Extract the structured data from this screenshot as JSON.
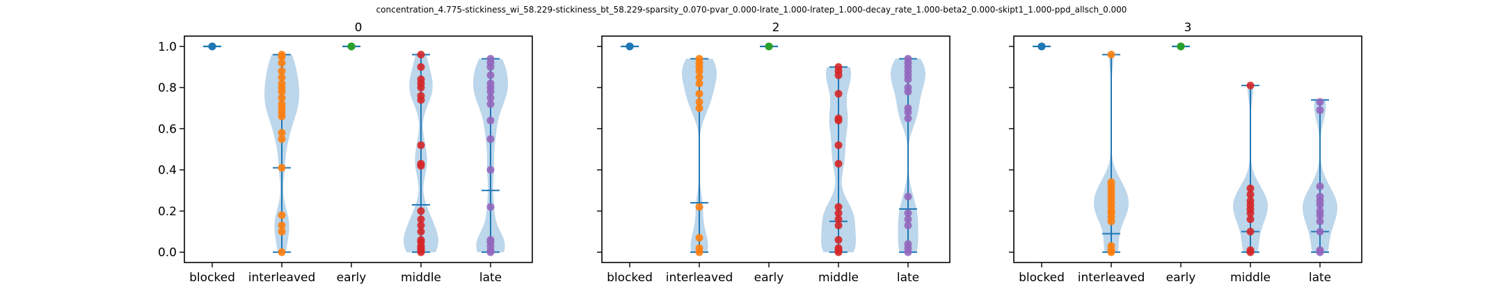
{
  "figure": {
    "suptitle": "concentration_4.775-stickiness_wi_58.229-stickiness_bt_58.229-sparsity_0.070-pvar_0.000-lrate_1.000-lratep_1.000-decay_rate_1.000-beta2_0.000-skipt1_1.000-ppd_allsch_0.000"
  },
  "colors": {
    "violin_fill": "#a6c8e4",
    "violin_lines": "#1f77b4",
    "blocked": "#1f77b4",
    "interleaved": "#ff7f0e",
    "early": "#2ca02c",
    "middle": "#d62728",
    "late": "#9467bd"
  },
  "chart_data": [
    {
      "type": "violin",
      "title": "0",
      "categories": [
        "blocked",
        "interleaved",
        "early",
        "middle",
        "late"
      ],
      "ylim": [
        -0.05,
        1.05
      ],
      "yticks": [
        "0.0",
        "0.2",
        "0.4",
        "0.6",
        "0.8",
        "1.0"
      ],
      "show_ytick_labels": true,
      "series": [
        {
          "category": "blocked",
          "values": [
            1.0,
            1.0,
            1.0
          ],
          "min": 1.0,
          "mean": 1.0,
          "max": 1.0
        },
        {
          "category": "interleaved",
          "values": [
            0.0,
            0.1,
            0.13,
            0.18,
            0.41,
            0.55,
            0.58,
            0.66,
            0.68,
            0.7,
            0.72,
            0.75,
            0.78,
            0.8,
            0.82,
            0.85,
            0.88,
            0.92,
            0.95,
            0.96
          ],
          "min": 0.0,
          "mean": 0.41,
          "max": 0.96
        },
        {
          "category": "early",
          "values": [
            1.0,
            1.0,
            1.0
          ],
          "min": 1.0,
          "mean": 1.0,
          "max": 1.0
        },
        {
          "category": "middle",
          "values": [
            0.0,
            0.01,
            0.02,
            0.03,
            0.05,
            0.06,
            0.1,
            0.13,
            0.16,
            0.2,
            0.42,
            0.43,
            0.52,
            0.74,
            0.76,
            0.8,
            0.82,
            0.84,
            0.9,
            0.96
          ],
          "min": 0.0,
          "mean": 0.23,
          "max": 0.96
        },
        {
          "category": "late",
          "values": [
            0.0,
            0.01,
            0.03,
            0.05,
            0.06,
            0.22,
            0.4,
            0.55,
            0.64,
            0.72,
            0.75,
            0.78,
            0.8,
            0.82,
            0.86,
            0.9,
            0.92,
            0.94
          ],
          "min": 0.0,
          "mean": 0.3,
          "max": 0.94
        }
      ]
    },
    {
      "type": "violin",
      "title": "2",
      "categories": [
        "blocked",
        "interleaved",
        "early",
        "middle",
        "late"
      ],
      "ylim": [
        -0.05,
        1.05
      ],
      "yticks": [
        "0.0",
        "0.2",
        "0.4",
        "0.6",
        "0.8",
        "1.0"
      ],
      "show_ytick_labels": false,
      "series": [
        {
          "category": "blocked",
          "values": [
            1.0,
            1.0,
            1.0
          ],
          "min": 1.0,
          "mean": 1.0,
          "max": 1.0
        },
        {
          "category": "interleaved",
          "values": [
            0.0,
            0.02,
            0.07,
            0.22,
            0.7,
            0.73,
            0.77,
            0.82,
            0.85,
            0.88,
            0.9,
            0.92,
            0.94
          ],
          "min": 0.0,
          "mean": 0.24,
          "max": 0.94
        },
        {
          "category": "early",
          "values": [
            1.0,
            1.0,
            1.0
          ],
          "min": 1.0,
          "mean": 1.0,
          "max": 1.0
        },
        {
          "category": "middle",
          "values": [
            0.0,
            0.01,
            0.02,
            0.06,
            0.13,
            0.16,
            0.19,
            0.22,
            0.43,
            0.52,
            0.64,
            0.65,
            0.77,
            0.86,
            0.88,
            0.9
          ],
          "min": 0.0,
          "mean": 0.15,
          "max": 0.9
        },
        {
          "category": "late",
          "values": [
            0.0,
            0.02,
            0.04,
            0.13,
            0.16,
            0.19,
            0.27,
            0.65,
            0.68,
            0.7,
            0.78,
            0.8,
            0.84,
            0.86,
            0.88,
            0.9,
            0.92,
            0.94
          ],
          "min": 0.0,
          "mean": 0.21,
          "max": 0.94
        }
      ]
    },
    {
      "type": "violin",
      "title": "3",
      "categories": [
        "blocked",
        "interleaved",
        "early",
        "middle",
        "late"
      ],
      "ylim": [
        -0.05,
        1.05
      ],
      "yticks": [
        "0.0",
        "0.2",
        "0.4",
        "0.6",
        "0.8",
        "1.0"
      ],
      "show_ytick_labels": false,
      "series": [
        {
          "category": "blocked",
          "values": [
            1.0,
            1.0,
            1.0
          ],
          "min": 1.0,
          "mean": 1.0,
          "max": 1.0
        },
        {
          "category": "interleaved",
          "values": [
            0.0,
            0.01,
            0.03,
            0.15,
            0.17,
            0.19,
            0.2,
            0.22,
            0.24,
            0.26,
            0.28,
            0.3,
            0.32,
            0.34,
            0.96
          ],
          "min": 0.0,
          "mean": 0.09,
          "max": 0.96
        },
        {
          "category": "early",
          "values": [
            1.0,
            1.0,
            1.0
          ],
          "min": 1.0,
          "mean": 1.0,
          "max": 1.0
        },
        {
          "category": "middle",
          "values": [
            0.0,
            0.01,
            0.1,
            0.16,
            0.19,
            0.21,
            0.23,
            0.25,
            0.28,
            0.31,
            0.81
          ],
          "min": 0.0,
          "mean": 0.1,
          "max": 0.81
        },
        {
          "category": "late",
          "values": [
            0.0,
            0.01,
            0.1,
            0.15,
            0.18,
            0.2,
            0.23,
            0.25,
            0.27,
            0.32,
            0.69,
            0.73
          ],
          "min": 0.0,
          "mean": 0.1,
          "max": 0.74
        }
      ]
    }
  ]
}
